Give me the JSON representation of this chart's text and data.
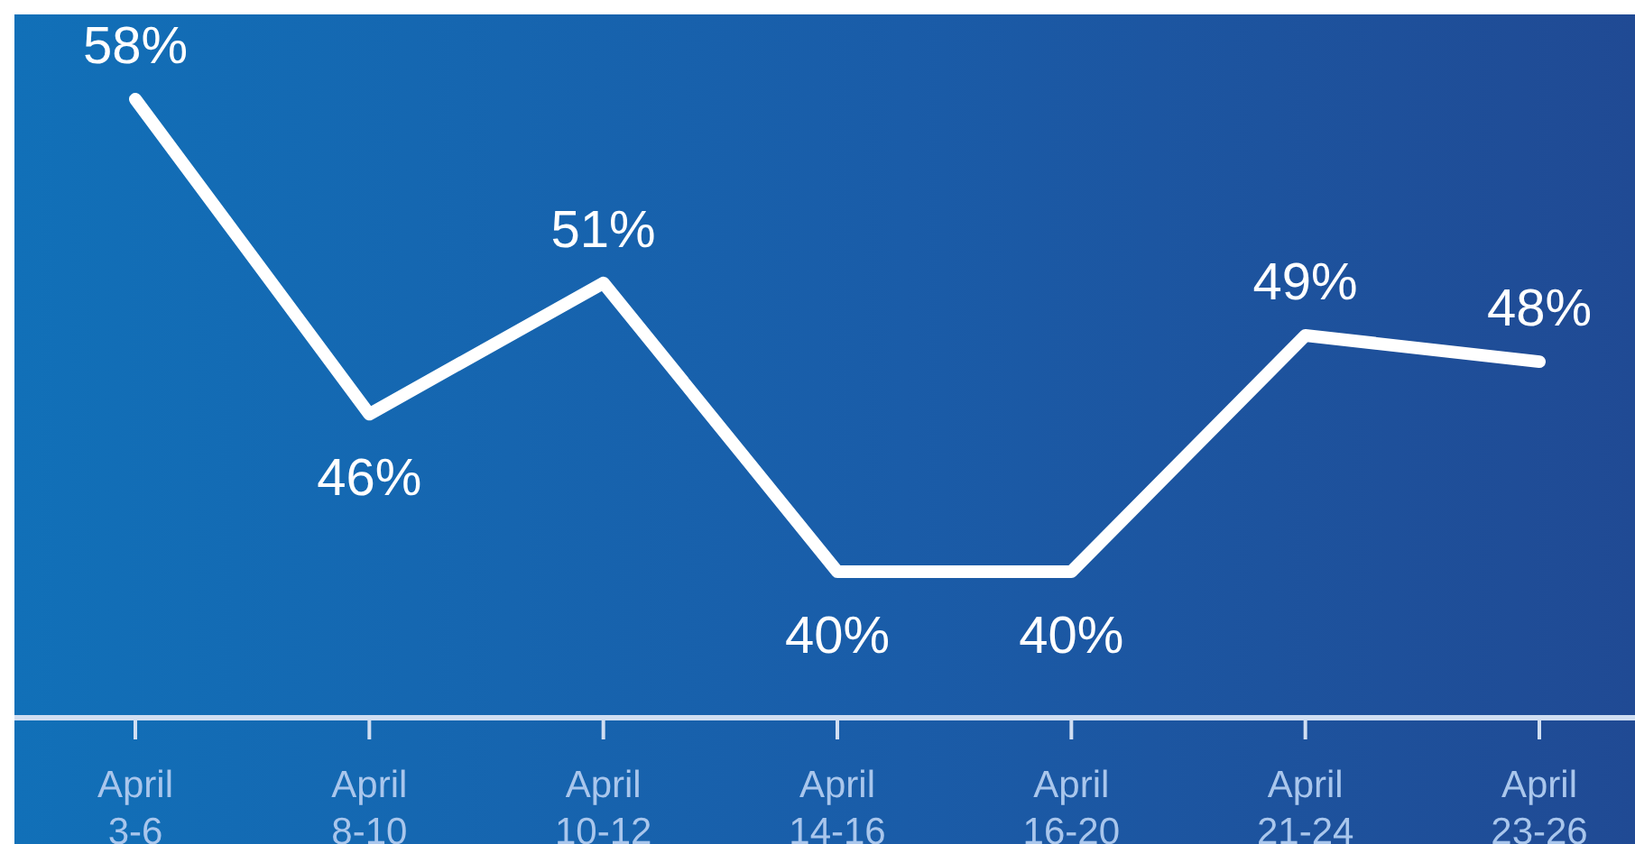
{
  "chart_data": {
    "type": "line",
    "categories": [
      "April 3-6",
      "April 8-10",
      "April 10-12",
      "April 14-16",
      "April 16-20",
      "April 21-24",
      "April 23-26"
    ],
    "values": [
      58,
      46,
      51,
      40,
      40,
      49,
      48
    ],
    "value_labels": [
      "58%",
      "46%",
      "51%",
      "40%",
      "40%",
      "49%",
      "48%"
    ],
    "color": "#ffffff",
    "marker": "none",
    "line_style": "solid"
  }
}
